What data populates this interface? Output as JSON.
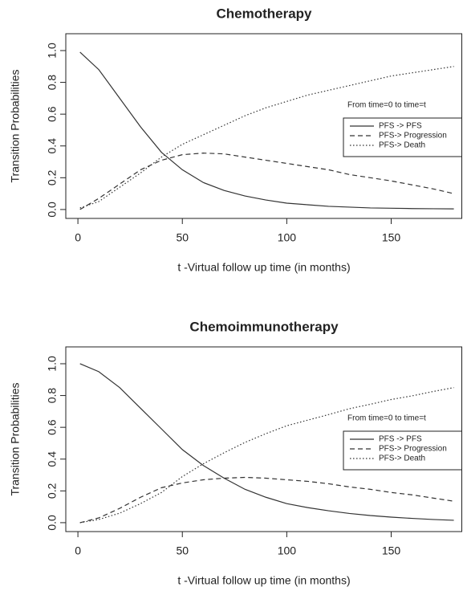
{
  "chart_data": [
    {
      "type": "line",
      "title": "Chemotherapy",
      "x_label": "t -Virtual follow up time (in months)",
      "y_label": "Transition Probabilities",
      "legend_title": "From time=0 to time=t",
      "legend": "right",
      "x": [
        1,
        10,
        20,
        30,
        40,
        50,
        60,
        70,
        80,
        90,
        100,
        110,
        120,
        130,
        140,
        150,
        160,
        170,
        180
      ],
      "series": [
        {
          "name": "PFS -> PFS",
          "color": "#333333",
          "dash": "solid",
          "values": [
            0.99,
            0.88,
            0.7,
            0.52,
            0.36,
            0.25,
            0.17,
            0.12,
            0.085,
            0.06,
            0.04,
            0.03,
            0.02,
            0.015,
            0.01,
            0.008,
            0.006,
            0.005,
            0.004
          ]
        },
        {
          "name": "PFS-> Progression",
          "color": "#333333",
          "dash": "dashed",
          "values": [
            0.0,
            0.07,
            0.16,
            0.25,
            0.31,
            0.345,
            0.355,
            0.35,
            0.33,
            0.31,
            0.29,
            0.27,
            0.25,
            0.22,
            0.2,
            0.18,
            0.155,
            0.13,
            0.1
          ]
        },
        {
          "name": "PFS-> Death",
          "color": "#333333",
          "dash": "dotted",
          "values": [
            0.01,
            0.05,
            0.14,
            0.23,
            0.33,
            0.41,
            0.47,
            0.53,
            0.59,
            0.64,
            0.68,
            0.72,
            0.75,
            0.78,
            0.81,
            0.84,
            0.86,
            0.88,
            0.9
          ]
        }
      ],
      "xlim": [
        -5.8,
        184
      ],
      "xticks": [
        0,
        50,
        100,
        150
      ],
      "ylim": [
        -0.056,
        1.106
      ],
      "yticks": [
        {
          "value": 0,
          "label": "0.0"
        },
        {
          "value": 0.2,
          "label": "0.2"
        },
        {
          "value": 0.4,
          "label": "0.4"
        },
        {
          "value": 0.6,
          "label": "0.6"
        },
        {
          "value": 0.8,
          "label": "0.8"
        },
        {
          "value": 1,
          "label": "1.0"
        }
      ]
    },
    {
      "type": "line",
      "title": "Chemoimmunotherapy",
      "x_label": "t -Virtual follow up time (in months)",
      "y_label": "Transition Probabilities",
      "legend_title": "From time=0 to time=t",
      "legend": "right",
      "x": [
        1,
        10,
        20,
        30,
        40,
        50,
        60,
        70,
        80,
        90,
        100,
        110,
        120,
        130,
        140,
        150,
        160,
        170,
        180
      ],
      "series": [
        {
          "name": "PFS -> PFS",
          "color": "#333333",
          "dash": "solid",
          "values": [
            1.0,
            0.95,
            0.85,
            0.72,
            0.59,
            0.46,
            0.36,
            0.28,
            0.21,
            0.16,
            0.12,
            0.095,
            0.075,
            0.058,
            0.045,
            0.035,
            0.027,
            0.02,
            0.015
          ]
        },
        {
          "name": "PFS-> Progression",
          "color": "#333333",
          "dash": "dashed",
          "values": [
            0.0,
            0.03,
            0.09,
            0.16,
            0.22,
            0.25,
            0.27,
            0.28,
            0.285,
            0.28,
            0.27,
            0.26,
            0.245,
            0.225,
            0.21,
            0.19,
            0.175,
            0.155,
            0.135
          ]
        },
        {
          "name": "PFS-> Death",
          "color": "#333333",
          "dash": "dotted",
          "values": [
            0.0,
            0.02,
            0.06,
            0.12,
            0.19,
            0.29,
            0.37,
            0.44,
            0.505,
            0.56,
            0.61,
            0.645,
            0.68,
            0.717,
            0.745,
            0.775,
            0.798,
            0.825,
            0.85
          ]
        }
      ],
      "xlim": [
        -5.8,
        184
      ],
      "xticks": [
        0,
        50,
        100,
        150
      ],
      "ylim": [
        -0.056,
        1.106
      ],
      "yticks": [
        {
          "value": 0,
          "label": "0.0"
        },
        {
          "value": 0.2,
          "label": "0.2"
        },
        {
          "value": 0.4,
          "label": "0.4"
        },
        {
          "value": 0.6,
          "label": "0.6"
        },
        {
          "value": 0.8,
          "label": "0.8"
        },
        {
          "value": 1,
          "label": "1.0"
        }
      ]
    }
  ]
}
